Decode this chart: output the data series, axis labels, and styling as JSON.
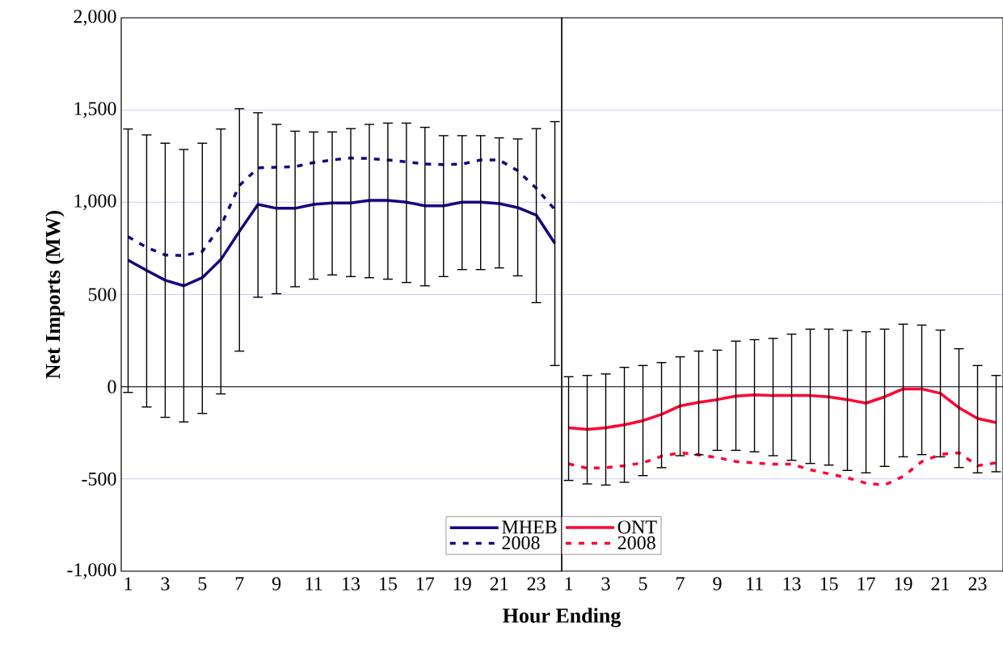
{
  "chart_data": [
    {
      "type": "line",
      "ylabel": "Net Imports (MW)",
      "xlabel": "Hour Ending",
      "categories": [
        "1",
        null,
        "3",
        null,
        "5",
        null,
        "7",
        null,
        "9",
        null,
        "11",
        null,
        "13",
        null,
        "15",
        null,
        "17",
        null,
        "19",
        null,
        "21",
        null,
        "23",
        null
      ],
      "ylim": [
        -1000,
        2000
      ],
      "yticks": [
        {
          "value": -1000,
          "label": "-1,000"
        },
        {
          "value": -500,
          "label": "-500"
        },
        {
          "value": 0,
          "label": "0"
        },
        {
          "value": 500,
          "label": "500"
        },
        {
          "value": 1000,
          "label": "1,000"
        },
        {
          "value": 1500,
          "label": "1,500"
        },
        {
          "value": 2000,
          "label": "2,000"
        }
      ],
      "grid": "y",
      "legend": "bottom right",
      "marker": "none",
      "ref_lines": [
        {
          "axis": "y",
          "value": 0,
          "color": "#000000"
        }
      ],
      "series": [
        {
          "name": "MHEB",
          "color": "#1a0080",
          "line_style": "solid",
          "values": [
            686,
            630,
            577,
            547,
            591,
            689,
            842,
            988,
            967,
            967,
            988,
            996,
            996,
            1010,
            1010,
            1000,
            981,
            981,
            1000,
            1000,
            993,
            971,
            930,
            777
          ],
          "errors": [
            [
              -31,
              1397
            ],
            [
              -110,
              1365
            ],
            [
              -166,
              1320
            ],
            [
              -191,
              1286
            ],
            [
              -145,
              1320
            ],
            [
              -39,
              1397
            ],
            [
              193,
              1507
            ],
            [
              485,
              1485
            ],
            [
              504,
              1422
            ],
            [
              542,
              1385
            ],
            [
              583,
              1381
            ],
            [
              606,
              1381
            ],
            [
              597,
              1399
            ],
            [
              591,
              1422
            ],
            [
              583,
              1429
            ],
            [
              565,
              1429
            ],
            [
              547,
              1406
            ],
            [
              597,
              1361
            ],
            [
              635,
              1361
            ],
            [
              635,
              1361
            ],
            [
              644,
              1349
            ],
            [
              601,
              1343
            ],
            [
              456,
              1399
            ],
            [
              115,
              1437
            ]
          ]
        },
        {
          "name": "2008",
          "color": "#1a0080",
          "line_style": "dashed",
          "values": [
            813,
            755,
            714,
            711,
            733,
            872,
            1091,
            1186,
            1190,
            1193,
            1215,
            1229,
            1240,
            1237,
            1229,
            1219,
            1207,
            1204,
            1207,
            1229,
            1229,
            1171,
            1076,
            960
          ]
        }
      ]
    },
    {
      "type": "line",
      "tick_labels": "x",
      "categories": [
        "1",
        null,
        "3",
        null,
        "5",
        null,
        "7",
        null,
        "9",
        null,
        "11",
        null,
        "13",
        null,
        "15",
        null,
        "17",
        null,
        "19",
        null,
        "21",
        null,
        "23",
        null
      ],
      "ylim": [
        -1000,
        2000
      ],
      "yticks": [
        {
          "value": -1000,
          "label": null
        },
        {
          "value": -500,
          "label": null
        },
        {
          "value": 0,
          "label": null
        },
        {
          "value": 500,
          "label": null
        },
        {
          "value": 1000,
          "label": null
        },
        {
          "value": 1500,
          "label": null
        },
        {
          "value": 2000,
          "label": null
        }
      ],
      "grid": "y",
      "legend": "bottom left",
      "marker": "none",
      "ref_lines": [
        {
          "axis": "y",
          "value": 0,
          "color": "#000000"
        }
      ],
      "series": [
        {
          "name": "ONT",
          "color": "#ff0033",
          "line_style": "solid",
          "values": [
            -223,
            -231,
            -223,
            -206,
            -184,
            -150,
            -104,
            -85,
            -70,
            -51,
            -44,
            -48,
            -48,
            -48,
            -55,
            -70,
            -89,
            -55,
            -12,
            -12,
            -36,
            -114,
            -172,
            -194
          ],
          "errors": [
            [
              -508,
              54
            ],
            [
              -527,
              61
            ],
            [
              -533,
              69
            ],
            [
              -518,
              105
            ],
            [
              -482,
              115
            ],
            [
              -439,
              131
            ],
            [
              -374,
              162
            ],
            [
              -369,
              193
            ],
            [
              -345,
              198
            ],
            [
              -345,
              247
            ],
            [
              -353,
              255
            ],
            [
              -374,
              262
            ],
            [
              -399,
              285
            ],
            [
              -416,
              312
            ],
            [
              -425,
              312
            ],
            [
              -454,
              305
            ],
            [
              -467,
              298
            ],
            [
              -432,
              312
            ],
            [
              -380,
              339
            ],
            [
              -368,
              334
            ],
            [
              -380,
              307
            ],
            [
              -438,
              206
            ],
            [
              -467,
              115
            ],
            [
              -461,
              61
            ]
          ]
        },
        {
          "name": "2008",
          "color": "#ff0033",
          "line_style": "dashed",
          "values": [
            -418,
            -442,
            -439,
            -428,
            -413,
            -377,
            -358,
            -369,
            -384,
            -406,
            -413,
            -420,
            -420,
            -450,
            -472,
            -494,
            -523,
            -533,
            -486,
            -406,
            -367,
            -358,
            -428,
            -413
          ]
        }
      ]
    }
  ]
}
